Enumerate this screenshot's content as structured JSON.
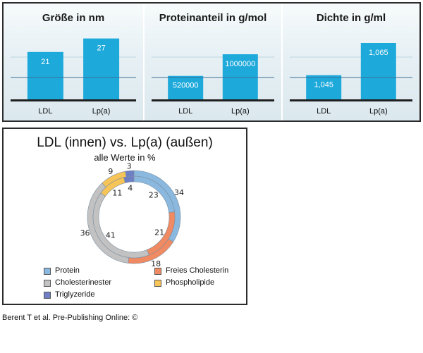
{
  "chart_data": [
    {
      "type": "bar",
      "title": "Größe in nm",
      "categories": [
        "LDL",
        "Lp(a)"
      ],
      "values": [
        21,
        27
      ],
      "value_labels": [
        "21",
        "27"
      ],
      "ylim": [
        0,
        30
      ],
      "color": "#1ea9db"
    },
    {
      "type": "bar",
      "title": "Proteinanteil in g/mol",
      "categories": [
        "LDL",
        "Lp(a)"
      ],
      "values": [
        520000,
        1000000
      ],
      "value_labels": [
        "520000",
        "1000000"
      ],
      "ylim": [
        0,
        1500000
      ],
      "color": "#1ea9db"
    },
    {
      "type": "bar",
      "title": "Dichte in g/ml",
      "categories": [
        "LDL",
        "Lp(a)"
      ],
      "values": [
        1.045,
        1.065
      ],
      "value_labels": [
        "1,045",
        "1,065"
      ],
      "ylim": [
        1.03,
        1.072
      ],
      "color": "#1ea9db"
    },
    {
      "type": "pie",
      "title": "LDL (innen) vs. Lp(a) (außen)",
      "subtitle": "alle Werte in %",
      "categories": [
        "Protein",
        "Freies Cholesterin",
        "Cholesterinester",
        "Phospholipide",
        "Triglyzeride"
      ],
      "series": [
        {
          "ring": "outer",
          "values": [
            34,
            18,
            36,
            9,
            3
          ]
        },
        {
          "ring": "inner",
          "values": [
            23,
            21,
            41,
            11,
            4
          ]
        }
      ],
      "colors": {
        "Protein": "#8ab8de",
        "Freies Cholesterin": "#f08a62",
        "Cholesterinester": "#c2c2c2",
        "Phospholipide": "#f7c457",
        "Triglyzeride": "#6f7fc4"
      }
    }
  ],
  "credit": "Berent T et al. Pre-Publishing Online: ©"
}
